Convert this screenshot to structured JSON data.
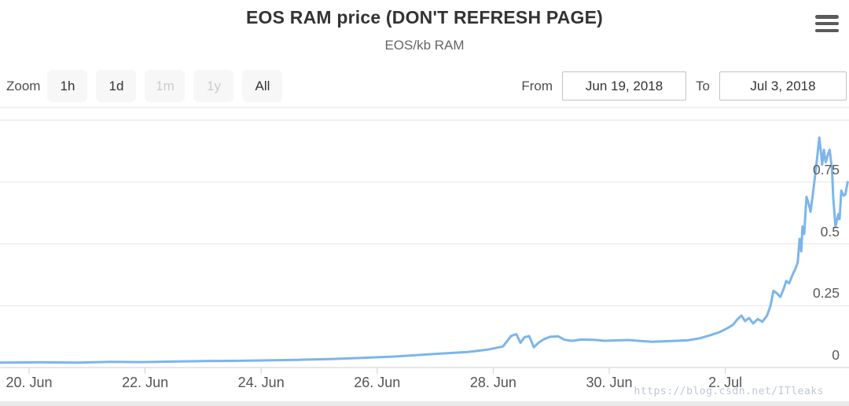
{
  "header": {
    "title": "EOS RAM price (DON'T REFRESH PAGE)",
    "subtitle": "EOS/kb RAM"
  },
  "toolbar": {
    "zoom_label": "Zoom",
    "zoom_buttons": [
      {
        "label": "1h",
        "enabled": true
      },
      {
        "label": "1d",
        "enabled": true
      },
      {
        "label": "1m",
        "enabled": false
      },
      {
        "label": "1y",
        "enabled": false
      },
      {
        "label": "All",
        "enabled": true
      }
    ],
    "from_label": "From",
    "from_value": "Jun 19, 2018",
    "to_label": "To",
    "to_value": "Jul 3, 2018"
  },
  "watermark": "https://blog.csdn.net/ITleaks",
  "colors": {
    "line": "#7cb5ec",
    "grid": "#e6e6e6",
    "axis": "#cfcfcf",
    "plot_top_border": "#e3e3e3",
    "button_bg": "#f7f7f7",
    "disabled_text": "#cccccc"
  },
  "chart_data": {
    "type": "line",
    "title": "EOS RAM price (DON'T REFRESH PAGE)",
    "series_name": "EOS/kb RAM",
    "x_unit_note": "t = days since Jun 19, 2018 00:00",
    "x_range_label": [
      "Jun 19, 2018",
      "Jul 3, 2018"
    ],
    "y_range": [
      0,
      1.05
    ],
    "grid": true,
    "legend": "none",
    "y_axis_side": "right",
    "x_ticks": [
      {
        "t": 1,
        "label": "20. Jun"
      },
      {
        "t": 3,
        "label": "22. Jun"
      },
      {
        "t": 5,
        "label": "24. Jun"
      },
      {
        "t": 7,
        "label": "26. Jun"
      },
      {
        "t": 9,
        "label": "28. Jun"
      },
      {
        "t": 11,
        "label": "30. Jun"
      },
      {
        "t": 13,
        "label": "2. Jul"
      }
    ],
    "y_ticks": [
      {
        "v": 0,
        "label": "0"
      },
      {
        "v": 0.25,
        "label": "0.25"
      },
      {
        "v": 0.5,
        "label": "0.5"
      },
      {
        "v": 0.75,
        "label": "0.75"
      },
      {
        "v": 1,
        "label": ""
      }
    ],
    "points": [
      [
        0.5,
        0.02
      ],
      [
        1.18,
        0.021
      ],
      [
        1.85,
        0.02
      ],
      [
        2.4,
        0.023
      ],
      [
        2.94,
        0.022
      ],
      [
        3.48,
        0.024
      ],
      [
        4.02,
        0.026
      ],
      [
        4.56,
        0.027
      ],
      [
        5.11,
        0.029
      ],
      [
        5.65,
        0.031
      ],
      [
        6.19,
        0.034
      ],
      [
        6.73,
        0.039
      ],
      [
        7.27,
        0.044
      ],
      [
        7.75,
        0.051
      ],
      [
        8.15,
        0.057
      ],
      [
        8.56,
        0.063
      ],
      [
        8.9,
        0.072
      ],
      [
        9.17,
        0.085
      ],
      [
        9.31,
        0.128
      ],
      [
        9.4,
        0.135
      ],
      [
        9.47,
        0.1
      ],
      [
        9.54,
        0.123
      ],
      [
        9.62,
        0.127
      ],
      [
        9.7,
        0.082
      ],
      [
        9.78,
        0.1
      ],
      [
        9.88,
        0.115
      ],
      [
        9.98,
        0.124
      ],
      [
        10.12,
        0.126
      ],
      [
        10.23,
        0.112
      ],
      [
        10.36,
        0.108
      ],
      [
        10.52,
        0.113
      ],
      [
        10.73,
        0.112
      ],
      [
        10.93,
        0.108
      ],
      [
        11.13,
        0.11
      ],
      [
        11.34,
        0.111
      ],
      [
        11.54,
        0.107
      ],
      [
        11.74,
        0.104
      ],
      [
        11.95,
        0.106
      ],
      [
        12.15,
        0.108
      ],
      [
        12.35,
        0.11
      ],
      [
        12.56,
        0.118
      ],
      [
        12.76,
        0.132
      ],
      [
        12.9,
        0.143
      ],
      [
        13.03,
        0.158
      ],
      [
        13.13,
        0.172
      ],
      [
        13.21,
        0.195
      ],
      [
        13.28,
        0.21
      ],
      [
        13.34,
        0.188
      ],
      [
        13.41,
        0.2
      ],
      [
        13.48,
        0.178
      ],
      [
        13.56,
        0.196
      ],
      [
        13.64,
        0.185
      ],
      [
        13.72,
        0.21
      ],
      [
        13.78,
        0.25
      ],
      [
        13.83,
        0.31
      ],
      [
        13.89,
        0.3
      ],
      [
        13.95,
        0.285
      ],
      [
        14.01,
        0.32
      ],
      [
        14.05,
        0.35
      ],
      [
        14.1,
        0.34
      ],
      [
        14.16,
        0.375
      ],
      [
        14.21,
        0.4
      ],
      [
        14.25,
        0.425
      ],
      [
        14.28,
        0.52
      ],
      [
        14.31,
        0.47
      ],
      [
        14.33,
        0.57
      ],
      [
        14.36,
        0.54
      ],
      [
        14.4,
        0.69
      ],
      [
        14.44,
        0.66
      ],
      [
        14.47,
        0.63
      ],
      [
        14.51,
        0.7
      ],
      [
        14.55,
        0.78
      ],
      [
        14.59,
        0.86
      ],
      [
        14.62,
        0.93
      ],
      [
        14.65,
        0.87
      ],
      [
        14.67,
        0.82
      ],
      [
        14.7,
        0.88
      ],
      [
        14.73,
        0.83
      ],
      [
        14.77,
        0.86
      ],
      [
        14.8,
        0.88
      ],
      [
        14.84,
        0.8
      ],
      [
        14.86,
        0.69
      ],
      [
        14.9,
        0.57
      ],
      [
        14.95,
        0.62
      ],
      [
        14.97,
        0.6
      ],
      [
        15.0,
        0.715
      ],
      [
        15.04,
        0.695
      ],
      [
        15.07,
        0.7
      ],
      [
        15.11,
        0.75
      ]
    ]
  }
}
